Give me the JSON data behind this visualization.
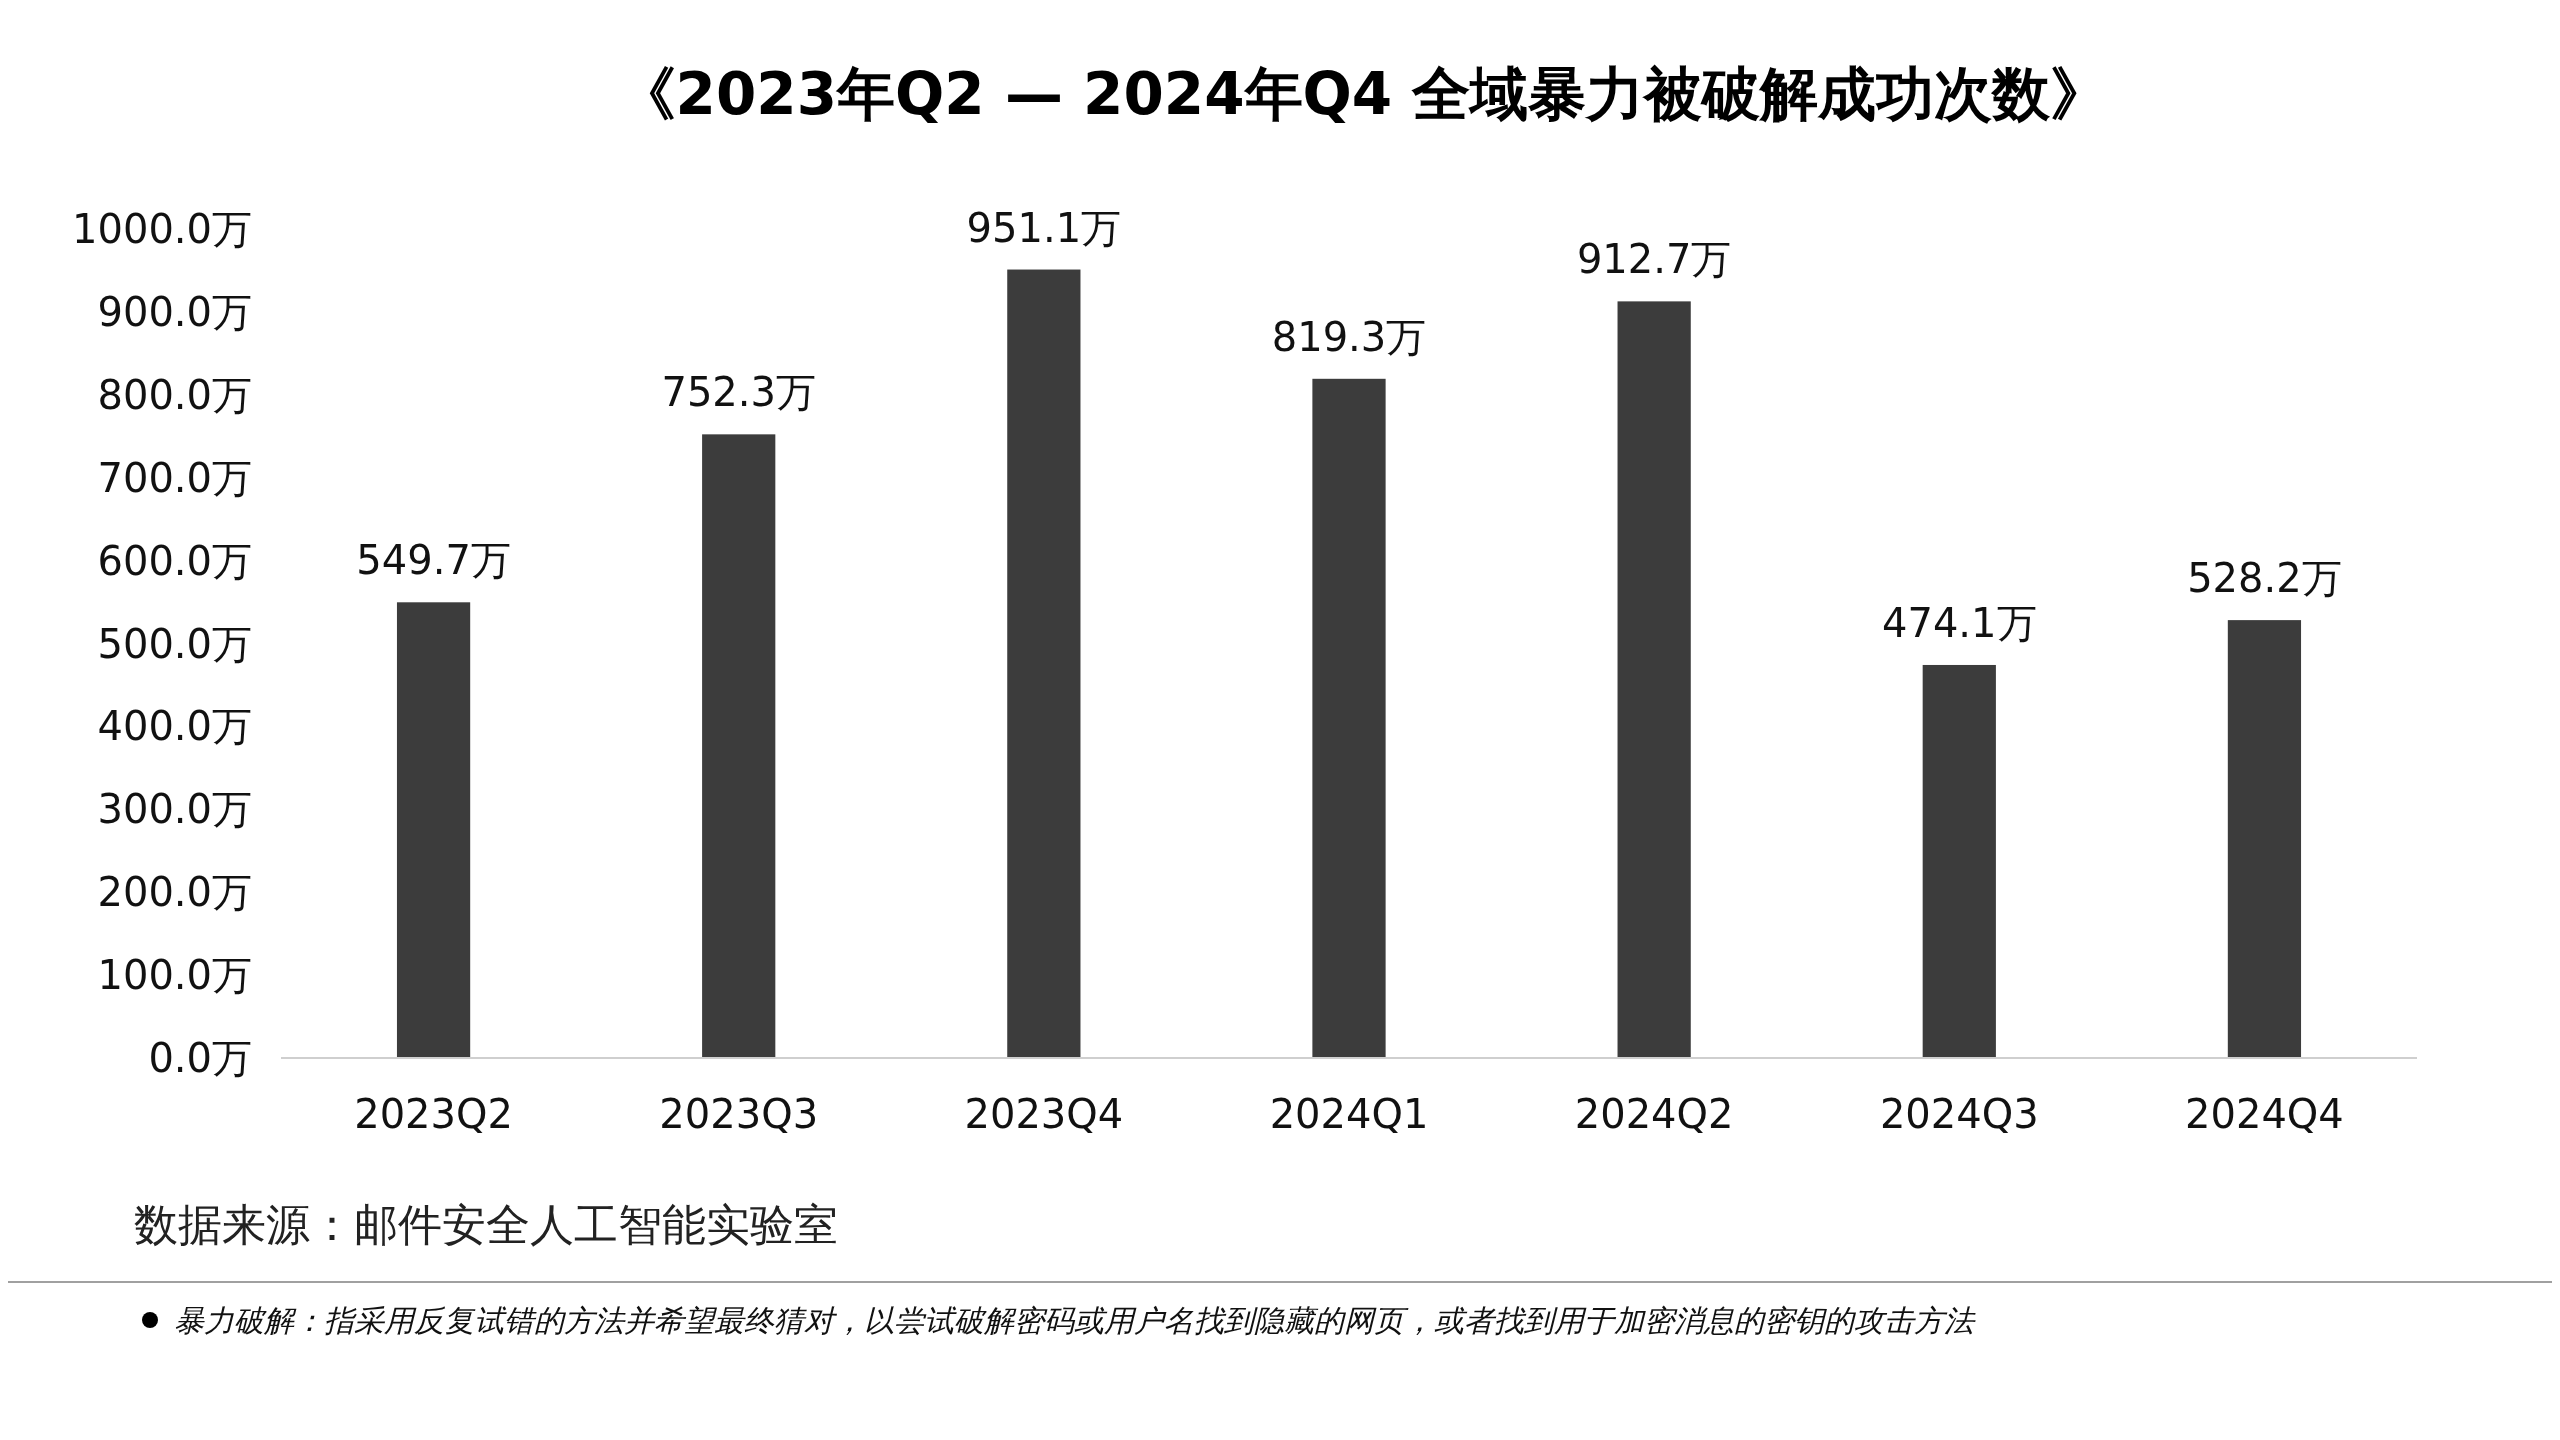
{
  "chart_data": {
    "type": "bar",
    "title": "《2023年Q2 — 2024年Q4 全域暴力被破解成功次数》",
    "categories": [
      "2023Q2",
      "2023Q3",
      "2023Q4",
      "2024Q1",
      "2024Q2",
      "2024Q3",
      "2024Q4"
    ],
    "values": [
      549.7,
      752.3,
      951.1,
      819.3,
      912.7,
      474.1,
      528.2
    ],
    "value_labels": [
      "549.7万",
      "752.3万",
      "951.1万",
      "819.3万",
      "912.7万",
      "474.1万",
      "528.2万"
    ],
    "color": "#3c3c3c",
    "ylim": [
      0,
      1000
    ],
    "yticks": [
      {
        "value": 0,
        "label": "0.0万"
      },
      {
        "value": 100,
        "label": "100.0万"
      },
      {
        "value": 200,
        "label": "200.0万"
      },
      {
        "value": 300,
        "label": "300.0万"
      },
      {
        "value": 400,
        "label": "400.0万"
      },
      {
        "value": 500,
        "label": "500.0万"
      },
      {
        "value": 600,
        "label": "600.0万"
      },
      {
        "value": 700,
        "label": "700.0万"
      },
      {
        "value": 800,
        "label": "800.0万"
      },
      {
        "value": 900,
        "label": "900.0万"
      },
      {
        "value": 1000,
        "label": "1000.0万"
      }
    ],
    "annotations": [
      "数据来源：邮件安全人工智能实验室",
      "暴力破解：指采用反复试错的方法并希望最终猜对，以尝试破解密码或用户名找到隐藏的网页，或者找到用于加密消息的密钥的攻击方法"
    ]
  }
}
